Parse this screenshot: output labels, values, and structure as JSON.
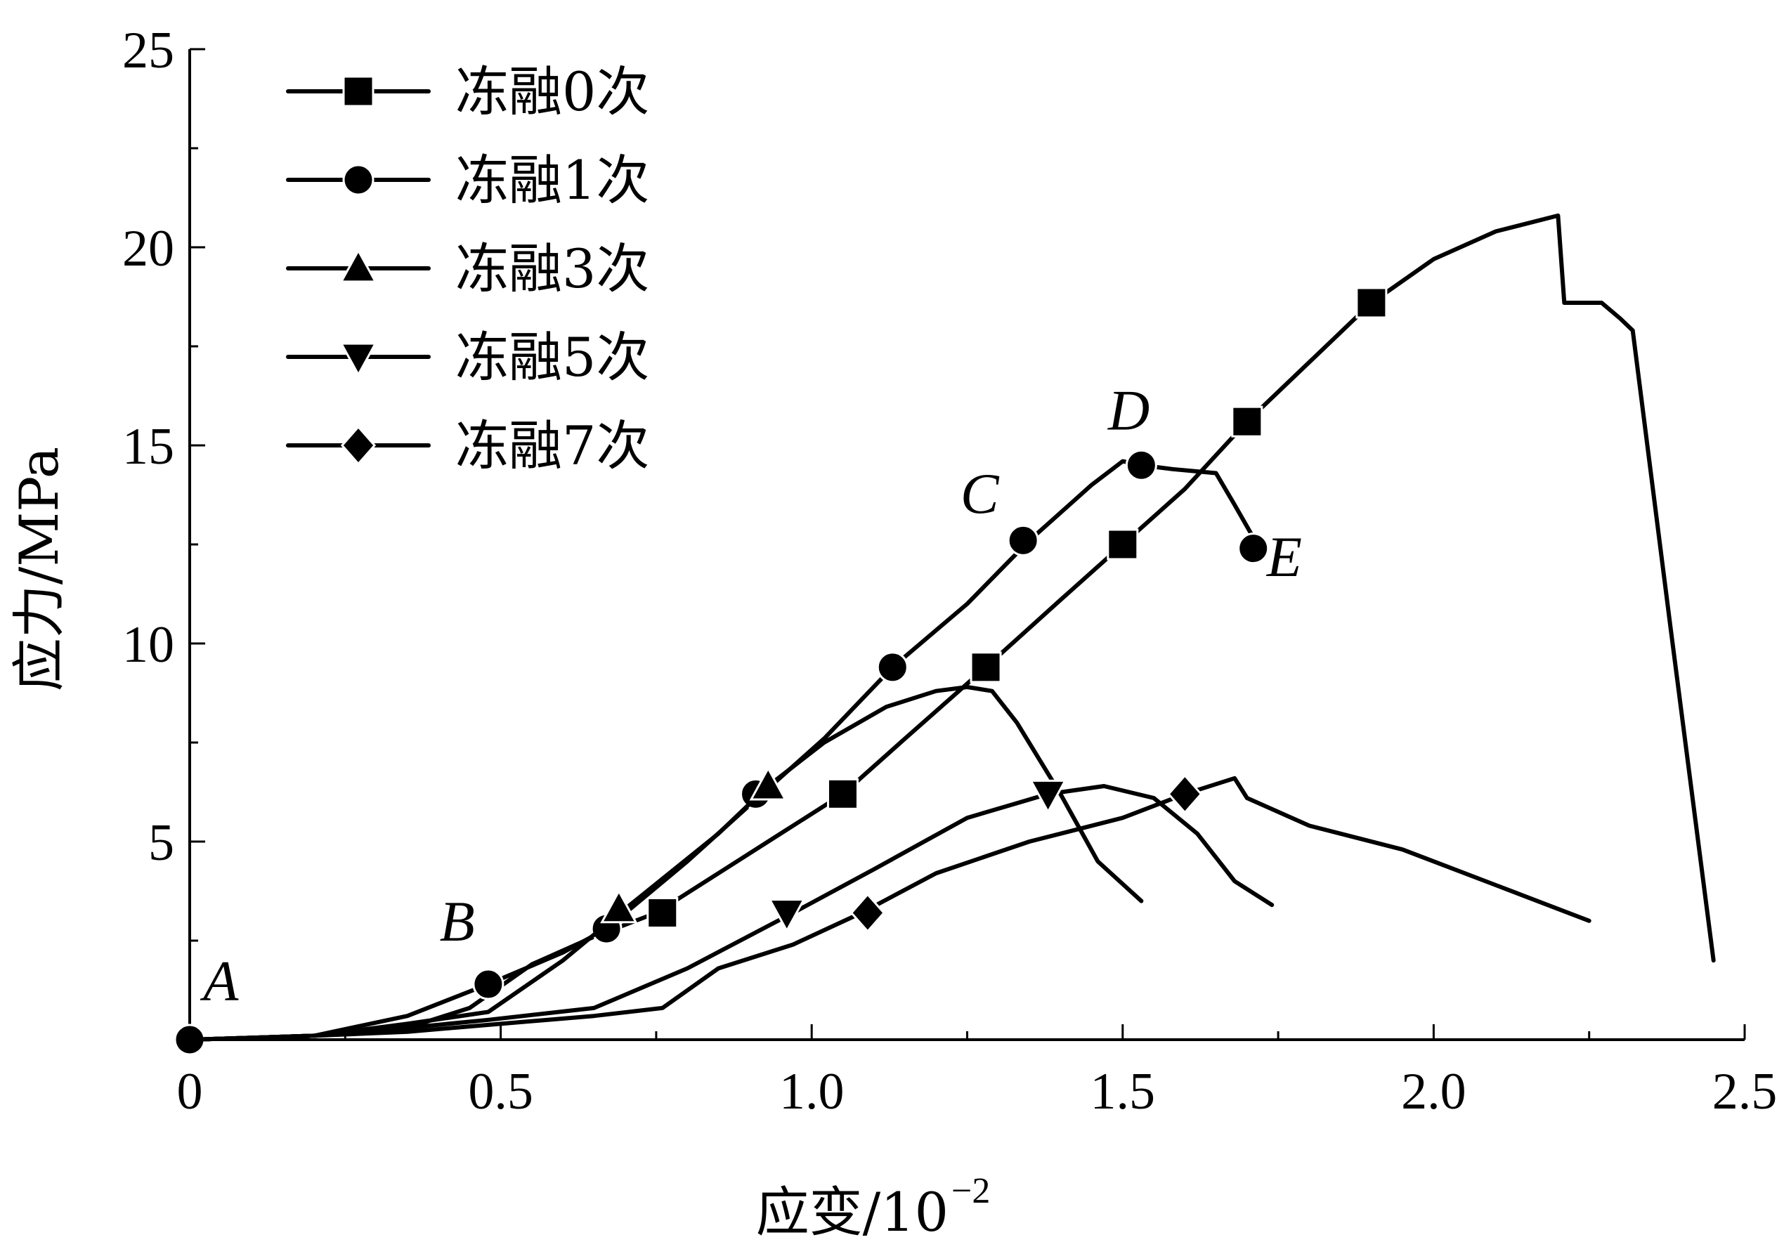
{
  "chart_data": {
    "type": "line",
    "title": "",
    "xlabel": "应变/10",
    "xlabel_exponent": "−2",
    "ylabel": "应力/MPa",
    "xlim": [
      0,
      2.5
    ],
    "ylim": [
      0,
      25
    ],
    "x_ticks": [
      0,
      0.5,
      1.0,
      1.5,
      2.0,
      2.5
    ],
    "x_tick_labels": [
      "0",
      "0.5",
      "1.0",
      "1.5",
      "2.0",
      "2.5"
    ],
    "y_ticks": [
      5,
      10,
      15,
      20,
      25
    ],
    "y_tick_labels": [
      "5",
      "10",
      "15",
      "20",
      "25"
    ],
    "grid": false,
    "legend_position": "top-left",
    "series": [
      {
        "name": "冻融0次",
        "marker": "square",
        "x": [
          0,
          0.2,
          0.35,
          0.45,
          0.55,
          0.65,
          0.75,
          0.85,
          0.95,
          1.05,
          1.15,
          1.28,
          1.4,
          1.5,
          1.6,
          1.7,
          1.8,
          1.9,
          2.0,
          2.1,
          2.2,
          2.21,
          2.27,
          2.3,
          2.32,
          2.38,
          2.45
        ],
        "y": [
          0,
          0.1,
          0.3,
          0.8,
          1.9,
          2.6,
          3.2,
          4.2,
          5.2,
          6.2,
          7.6,
          9.4,
          11.1,
          12.5,
          13.9,
          15.6,
          17.1,
          18.6,
          19.7,
          20.4,
          20.8,
          18.6,
          18.6,
          18.2,
          17.9,
          10.5,
          2.0
        ],
        "marker_x": [
          0.76,
          1.05,
          1.28,
          1.5,
          1.7,
          1.9
        ],
        "marker_y": [
          3.2,
          6.2,
          9.4,
          12.5,
          15.6,
          18.6
        ]
      },
      {
        "name": "冻融1次",
        "marker": "circle",
        "x": [
          0,
          0.2,
          0.35,
          0.48,
          0.6,
          0.67,
          0.8,
          0.92,
          1.02,
          1.13,
          1.25,
          1.35,
          1.45,
          1.5,
          1.53,
          1.58,
          1.65,
          1.68,
          1.72
        ],
        "y": [
          0,
          0.1,
          0.6,
          1.4,
          2.2,
          2.8,
          4.5,
          6.2,
          7.6,
          9.4,
          11.0,
          12.6,
          14.0,
          14.6,
          14.5,
          14.4,
          14.3,
          13.5,
          12.4
        ],
        "marker_x": [
          0,
          0.48,
          0.67,
          0.91,
          1.13,
          1.34,
          1.53,
          1.71
        ],
        "marker_y": [
          0,
          1.4,
          2.8,
          6.2,
          9.4,
          12.6,
          14.5,
          12.4
        ]
      },
      {
        "name": "冻融3次",
        "marker": "triangle-up",
        "x": [
          0,
          0.2,
          0.35,
          0.48,
          0.6,
          0.7,
          0.85,
          0.93,
          1.02,
          1.12,
          1.2,
          1.25,
          1.29,
          1.33,
          1.4,
          1.46,
          1.53
        ],
        "y": [
          0,
          0.1,
          0.4,
          0.7,
          2.0,
          3.3,
          5.2,
          6.4,
          7.5,
          8.4,
          8.8,
          8.9,
          8.8,
          8.0,
          6.2,
          4.5,
          3.5
        ],
        "marker_x": [
          0.69,
          0.93
        ],
        "marker_y": [
          3.3,
          6.4
        ]
      },
      {
        "name": "冻融5次",
        "marker": "triangle-down",
        "x": [
          0,
          0.2,
          0.35,
          0.48,
          0.65,
          0.8,
          0.97,
          1.1,
          1.25,
          1.38,
          1.47,
          1.55,
          1.62,
          1.68,
          1.74
        ],
        "y": [
          0,
          0.1,
          0.3,
          0.5,
          0.8,
          1.8,
          3.2,
          4.3,
          5.6,
          6.2,
          6.4,
          6.1,
          5.2,
          4.0,
          3.4
        ],
        "marker_x": [
          0.96,
          1.38
        ],
        "marker_y": [
          3.2,
          6.2
        ]
      },
      {
        "name": "冻融7次",
        "marker": "diamond",
        "x": [
          0,
          0.2,
          0.35,
          0.5,
          0.65,
          0.76,
          0.85,
          0.97,
          1.08,
          1.2,
          1.35,
          1.5,
          1.6,
          1.68,
          1.7,
          1.8,
          1.95,
          2.1,
          2.25
        ],
        "y": [
          0,
          0.1,
          0.2,
          0.4,
          0.6,
          0.8,
          1.8,
          2.4,
          3.2,
          4.2,
          5.0,
          5.6,
          6.2,
          6.6,
          6.1,
          5.4,
          4.8,
          3.9,
          3.0
        ],
        "marker_x": [
          1.09,
          1.6
        ],
        "marker_y": [
          3.2,
          6.2
        ]
      }
    ],
    "annotations": [
      {
        "text": "A",
        "x": 0.05,
        "y": 1.0
      },
      {
        "text": "B",
        "x": 0.43,
        "y": 2.5
      },
      {
        "text": "C",
        "x": 1.27,
        "y": 13.3
      },
      {
        "text": "D",
        "x": 1.51,
        "y": 15.4
      },
      {
        "text": "E",
        "x": 1.76,
        "y": 11.7
      }
    ]
  }
}
